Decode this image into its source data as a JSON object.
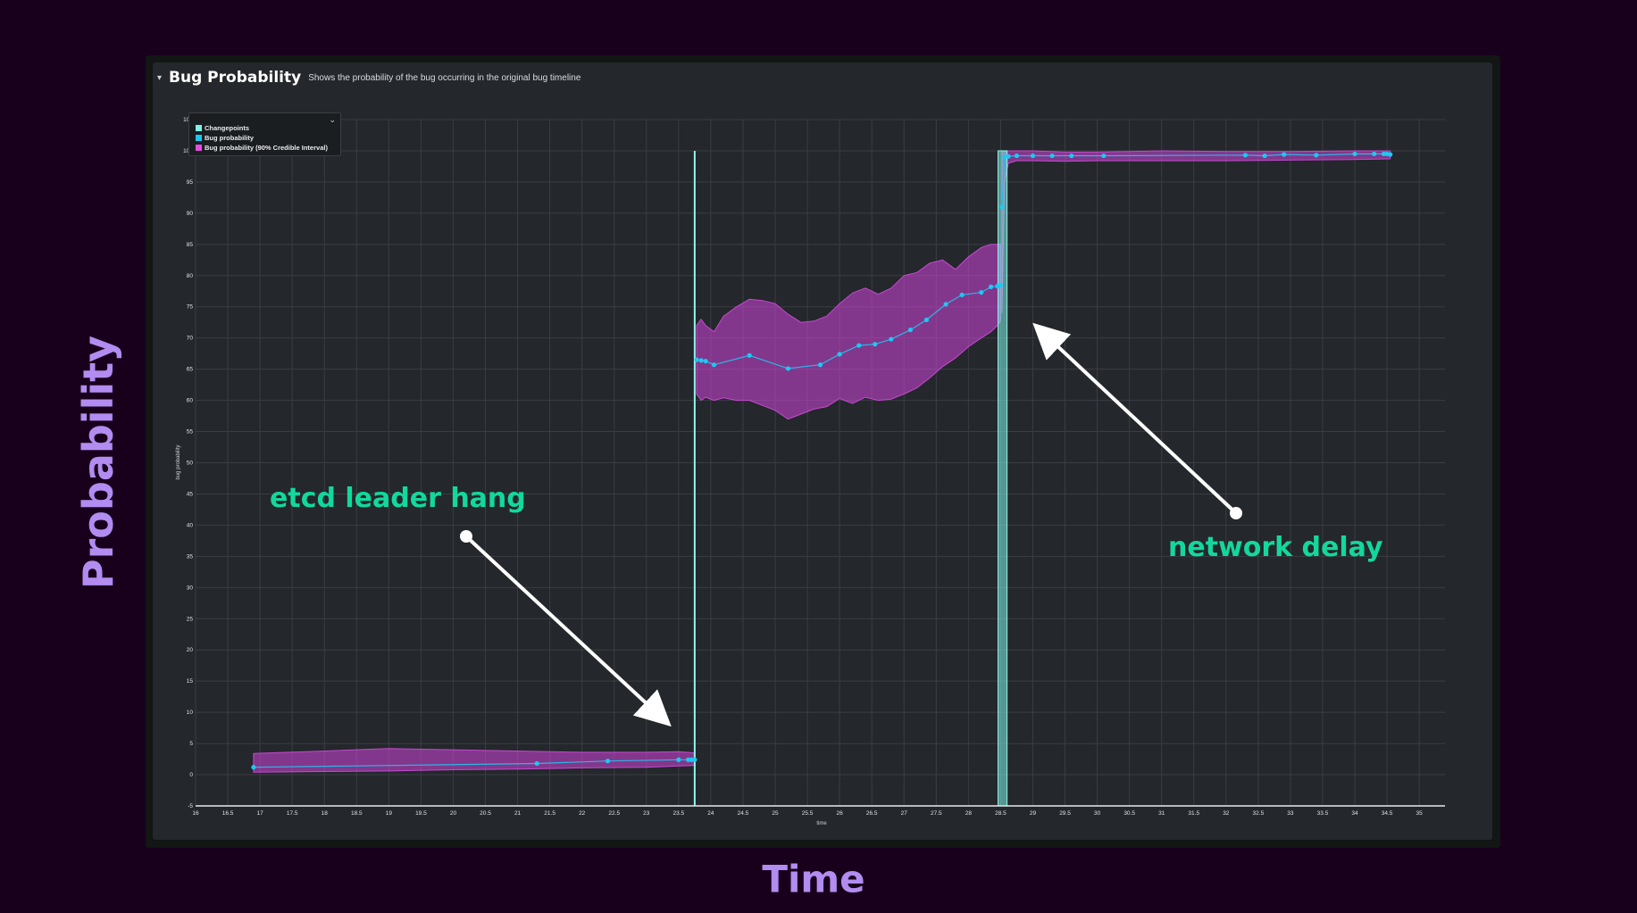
{
  "panel": {
    "caret": "▾",
    "title": "Bug Probability",
    "description": "Shows the probability of the bug occurring in the original bug timeline"
  },
  "legend": {
    "toggle_icon": "chevron-down-icon",
    "items": [
      {
        "label": "Changepoints",
        "color": "#7ff0e4"
      },
      {
        "label": "Bug probability",
        "color": "#19c6f0"
      },
      {
        "label": "Bug probability (90% Credible Interval)",
        "color": "#e64ae6"
      }
    ]
  },
  "big_labels": {
    "y": "Probability",
    "x": "Time"
  },
  "annotations": [
    {
      "text": "etcd leader hang"
    },
    {
      "text": "network delay"
    }
  ],
  "chart_data": {
    "type": "line",
    "xlabel": "time",
    "ylabel": "bug probability",
    "xlim": [
      16,
      35.4
    ],
    "ylim": [
      -5,
      105
    ],
    "grid": true,
    "legend_position": "top-left",
    "x_ticks": [
      "16",
      "16.5",
      "17",
      "17.5",
      "18",
      "18.5",
      "19",
      "19.5",
      "20",
      "20.5",
      "21",
      "21.5",
      "22",
      "22.5",
      "23",
      "23.5",
      "24",
      "24.5",
      "25",
      "25.5",
      "26",
      "26.5",
      "27",
      "27.5",
      "28",
      "28.5",
      "29",
      "29.5",
      "30",
      "30.5",
      "31",
      "31.5",
      "32",
      "32.5",
      "33",
      "33.5",
      "34",
      "34.5",
      "35"
    ],
    "y_ticks": [
      "-5",
      "0",
      "5",
      "10",
      "15",
      "20",
      "25",
      "30",
      "35",
      "40",
      "45",
      "50",
      "55",
      "60",
      "65",
      "70",
      "75",
      "80",
      "85",
      "90",
      "95",
      "100",
      "105"
    ],
    "changepoints": [
      {
        "from": 23.75,
        "to": 23.75,
        "y_top": 100
      },
      {
        "from": 28.46,
        "to": 28.6,
        "y_top": 100
      }
    ],
    "series": [
      {
        "name": "Bug probability",
        "segments": [
          {
            "x": [
              16.9,
              21.3,
              22.4,
              23.5,
              23.65,
              23.7,
              23.75
            ],
            "y": [
              1.2,
              1.8,
              2.2,
              2.4,
              2.4,
              2.4,
              2.4
            ]
          },
          {
            "x": [
              23.78,
              23.85,
              23.92,
              24.05,
              24.6,
              25.2,
              25.7,
              26.0,
              26.3,
              26.55,
              26.8,
              27.1,
              27.35,
              27.65,
              27.9,
              28.2,
              28.35,
              28.45,
              28.5
            ],
            "y": [
              66.5,
              66.4,
              66.3,
              65.7,
              67.2,
              65.1,
              65.7,
              67.4,
              68.8,
              69.0,
              69.8,
              71.3,
              72.9,
              75.4,
              76.9,
              77.3,
              78.2,
              78.3,
              78.5
            ]
          },
          {
            "x": [
              28.52,
              28.56,
              28.62,
              28.75,
              29.0,
              29.3,
              29.6,
              30.1,
              32.3,
              32.6,
              32.9,
              33.4,
              34.0,
              34.3,
              34.45,
              34.5,
              34.55
            ],
            "y": [
              91.0,
              99.0,
              99.1,
              99.2,
              99.2,
              99.2,
              99.2,
              99.2,
              99.3,
              99.2,
              99.4,
              99.3,
              99.5,
              99.5,
              99.5,
              99.5,
              99.4
            ]
          }
        ]
      },
      {
        "name": "Bug probability (90% Credible Interval)",
        "segments": [
          {
            "x": [
              16.9,
              18.0,
              19.0,
              20.0,
              21.0,
              22.0,
              23.0,
              23.5,
              23.75
            ],
            "upper": [
              3.4,
              3.8,
              4.2,
              4.0,
              3.8,
              3.6,
              3.6,
              3.7,
              3.5
            ],
            "lower": [
              0.4,
              0.5,
              0.6,
              0.8,
              0.9,
              1.1,
              1.2,
              1.4,
              1.5
            ]
          },
          {
            "x": [
              23.78,
              23.85,
              23.92,
              24.05,
              24.2,
              24.4,
              24.6,
              24.8,
              25.0,
              25.2,
              25.4,
              25.6,
              25.8,
              26.0,
              26.2,
              26.4,
              26.6,
              26.8,
              27.0,
              27.2,
              27.4,
              27.6,
              27.8,
              28.0,
              28.2,
              28.35,
              28.45,
              28.5
            ],
            "upper": [
              72.0,
              73.0,
              72.0,
              71.0,
              73.5,
              75.0,
              76.2,
              76.0,
              75.5,
              73.8,
              72.5,
              72.7,
              73.5,
              75.5,
              77.2,
              78.0,
              77.0,
              78.0,
              80.0,
              80.5,
              82.0,
              82.5,
              81.0,
              83.0,
              84.5,
              85.0,
              85.0,
              85.0
            ],
            "lower": [
              61.0,
              60.0,
              60.5,
              60.0,
              60.4,
              60.0,
              60.0,
              59.2,
              58.4,
              57.0,
              57.8,
              58.6,
              59.0,
              60.3,
              59.5,
              60.5,
              60.0,
              60.2,
              61.0,
              62.0,
              63.6,
              65.4,
              66.8,
              68.6,
              70.0,
              71.0,
              72.0,
              72.8
            ]
          },
          {
            "x": [
              28.52,
              28.56,
              28.62,
              28.75,
              29.0,
              29.5,
              30.0,
              31.0,
              32.0,
              33.0,
              34.0,
              34.55
            ],
            "upper": [
              100.0,
              100.0,
              100.0,
              100.0,
              100.0,
              99.8,
              99.8,
              100.0,
              99.9,
              99.9,
              100.0,
              100.0
            ],
            "lower": [
              74.0,
              95.0,
              98.0,
              98.4,
              98.4,
              98.3,
              98.4,
              98.4,
              98.4,
              98.5,
              98.6,
              98.7
            ]
          }
        ]
      }
    ]
  }
}
